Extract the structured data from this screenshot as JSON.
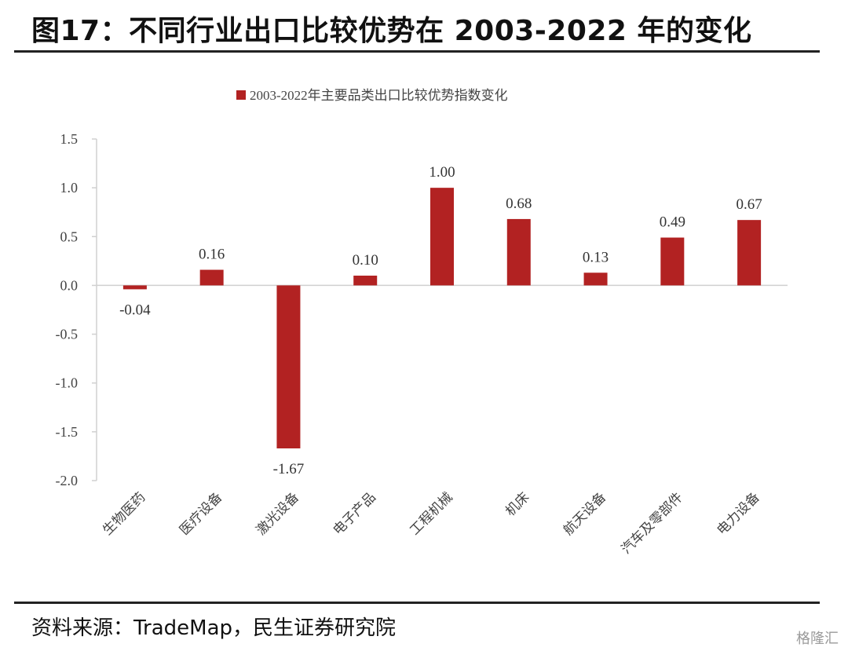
{
  "header": {
    "title": "图17：不同行业出口比较优势在 2003-2022 年的变化"
  },
  "footer": {
    "source": "资料来源：TradeMap，民生证券研究院",
    "watermark": "格隆汇"
  },
  "chart_data": {
    "type": "bar",
    "title": "",
    "xlabel": "",
    "ylabel": "",
    "ylim": [
      -2.0,
      1.5
    ],
    "yticks": [
      "1.5",
      "1.0",
      "0.5",
      "0.0",
      "-0.5",
      "-1.0",
      "-1.5",
      "-2.0"
    ],
    "ytick_values": [
      1.5,
      1.0,
      0.5,
      0.0,
      -0.5,
      -1.0,
      -1.5,
      -2.0
    ],
    "grid": false,
    "legend": {
      "position": "top",
      "entries": [
        "2003-2022年主要品类出口比较优势指数变化"
      ]
    },
    "categories": [
      "生物医药",
      "医疗设备",
      "激光设备",
      "电子产品",
      "工程机械",
      "机床",
      "航天设备",
      "汽车及零部件",
      "电力设备"
    ],
    "series": [
      {
        "name": "2003-2022年主要品类出口比较优势指数变化",
        "color": "#b22222",
        "values": [
          -0.04,
          0.16,
          -1.67,
          0.1,
          1.0,
          0.68,
          0.13,
          0.49,
          0.67
        ],
        "labels": [
          "-0.04",
          "0.16",
          "-1.67",
          "0.10",
          "1.00",
          "0.68",
          "0.13",
          "0.49",
          "0.67"
        ]
      }
    ]
  }
}
